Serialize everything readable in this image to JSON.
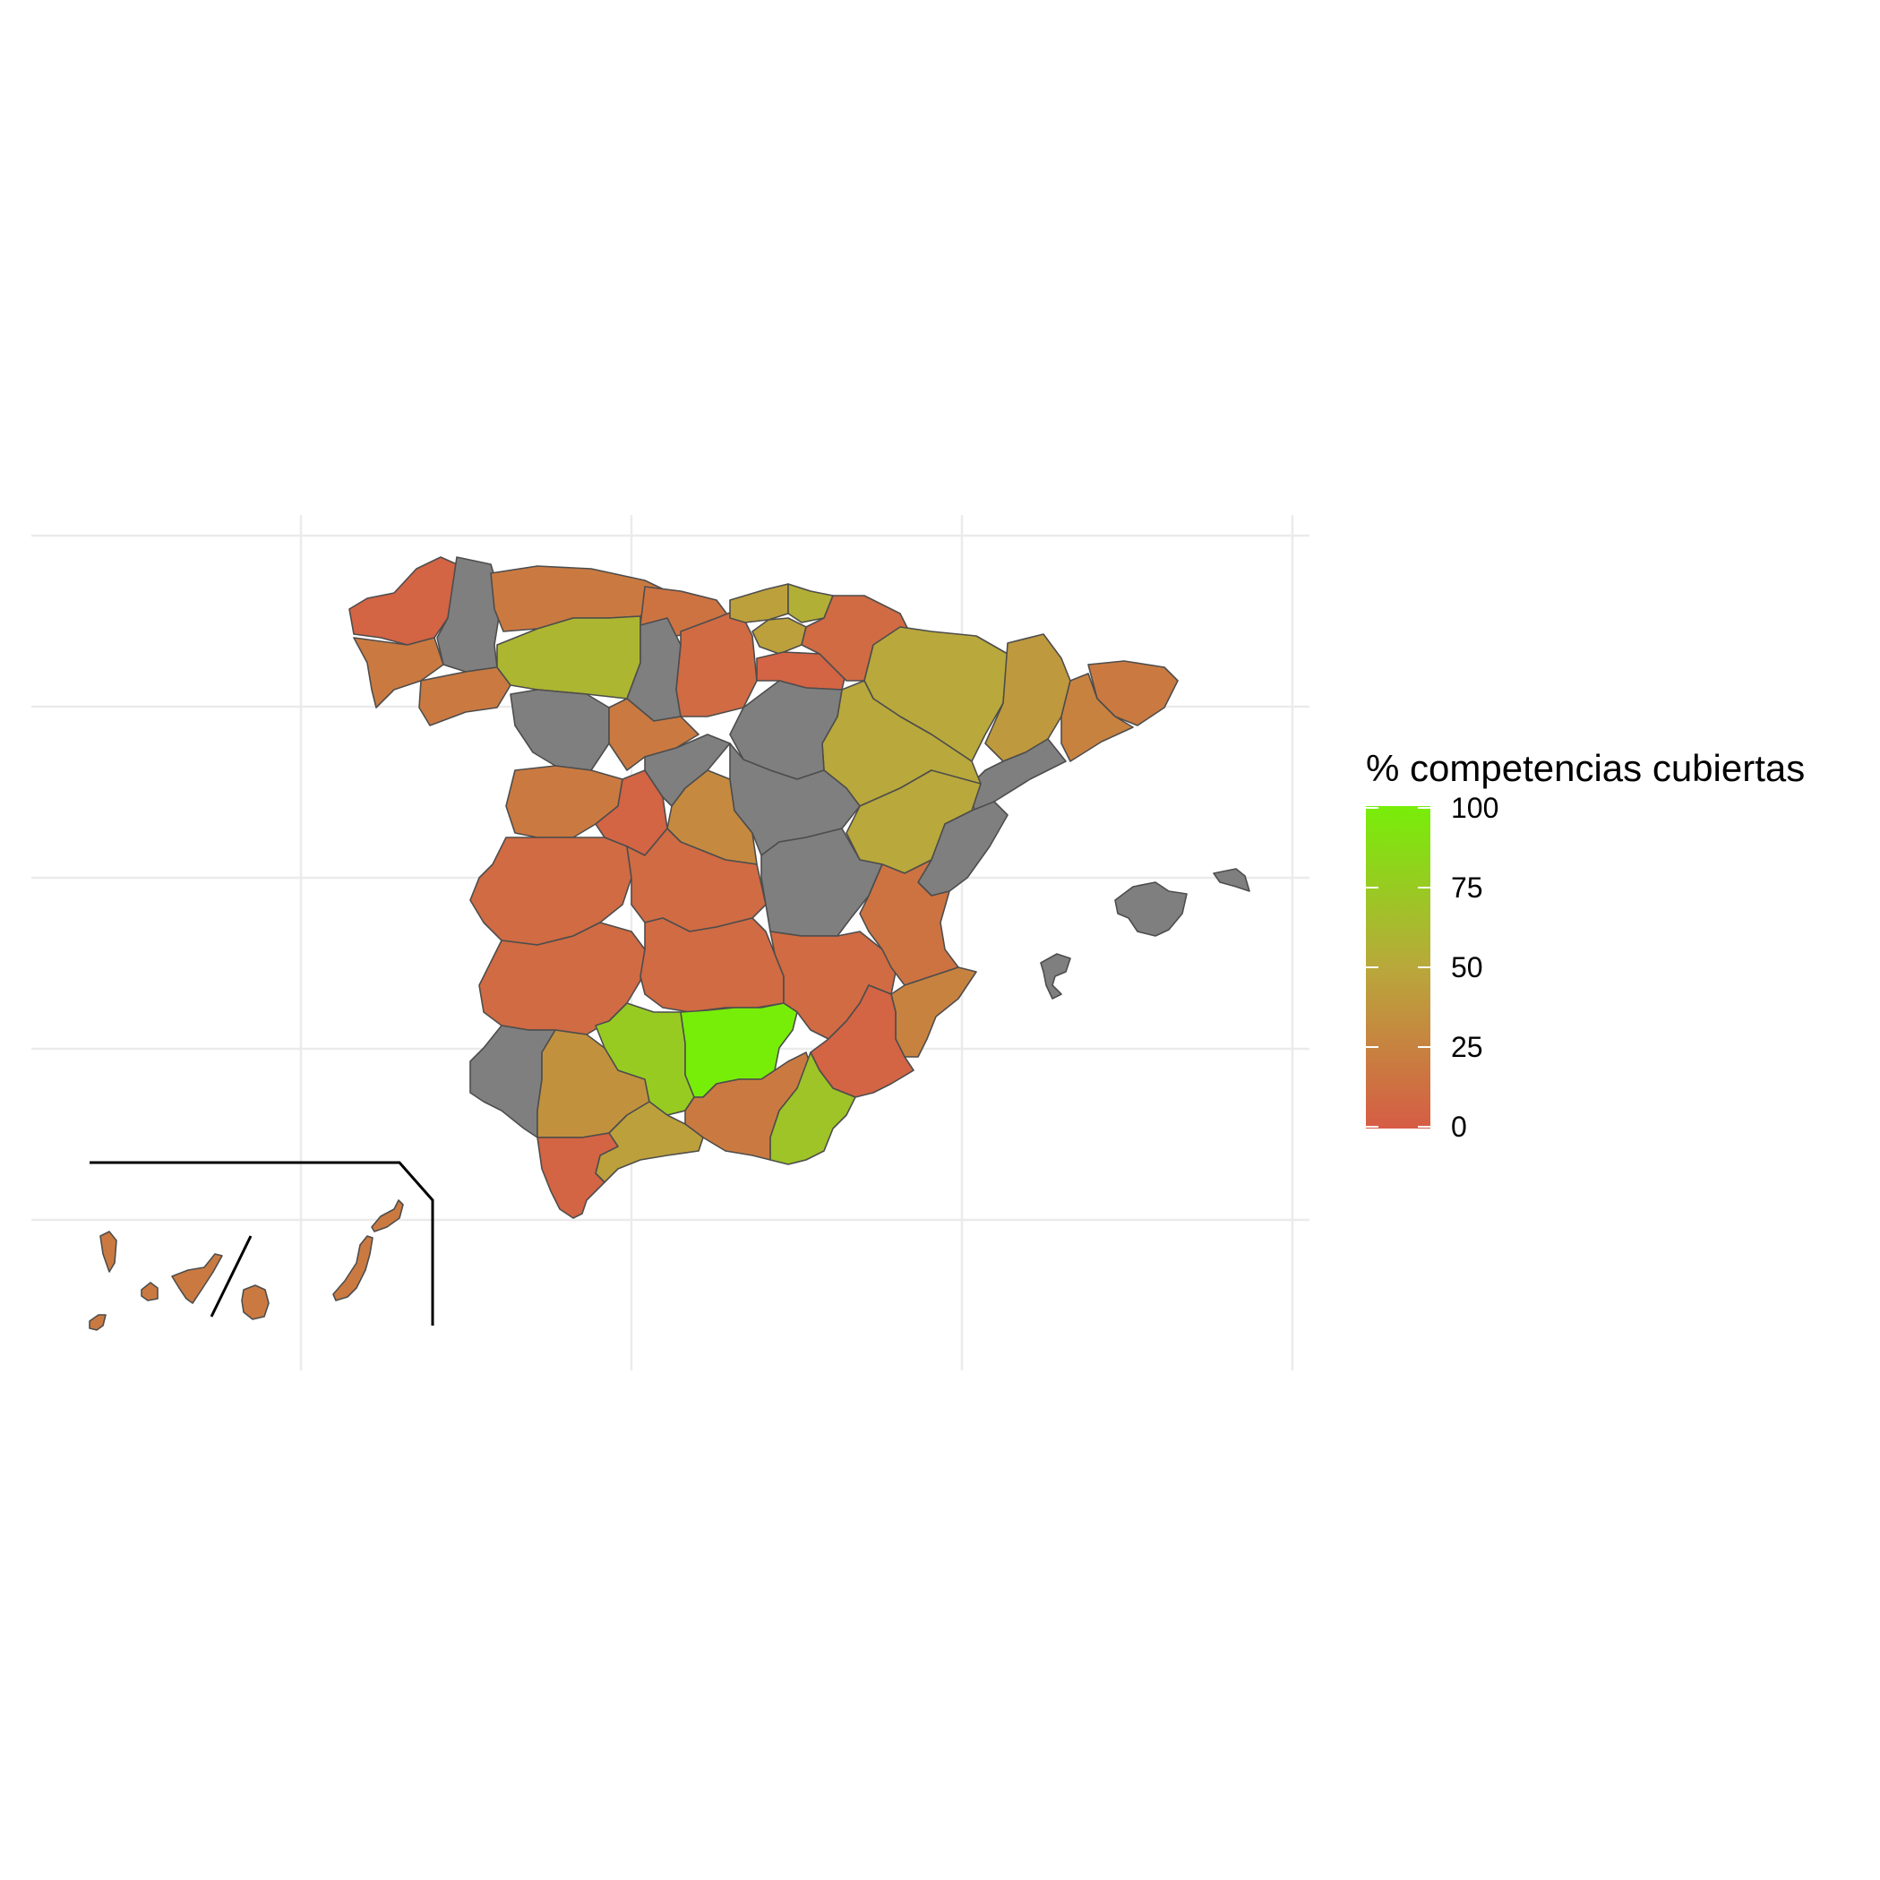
{
  "legend": {
    "title": "% competencias cubiertas",
    "min": 0,
    "max": 100,
    "ticks": [
      "100",
      "75",
      "50",
      "25",
      "0"
    ],
    "colors": {
      "low": "#d65c45",
      "mid": "#b9a83b",
      "high": "#77ee08"
    },
    "na_color": "#7f7f7f"
  },
  "map": {
    "region": "Spain (provinces)",
    "inset": "Canary Islands",
    "provinces": [
      {
        "name": "A Coruña",
        "value": 5
      },
      {
        "name": "Lugo",
        "value": null
      },
      {
        "name": "Pontevedra",
        "value": 20
      },
      {
        "name": "Ourense",
        "value": 20
      },
      {
        "name": "Asturias",
        "value": 20
      },
      {
        "name": "León",
        "value": 60
      },
      {
        "name": "Zamora",
        "value": null
      },
      {
        "name": "Cantabria",
        "value": 15
      },
      {
        "name": "Palencia",
        "value": null
      },
      {
        "name": "Burgos",
        "value": 10
      },
      {
        "name": "Bizkaia",
        "value": 45
      },
      {
        "name": "Gipuzkoa",
        "value": 55
      },
      {
        "name": "Álava",
        "value": 45
      },
      {
        "name": "La Rioja",
        "value": 5
      },
      {
        "name": "Navarra",
        "value": 10
      },
      {
        "name": "Huesca",
        "value": 50
      },
      {
        "name": "Lleida",
        "value": 40
      },
      {
        "name": "Girona",
        "value": 20
      },
      {
        "name": "Barcelona",
        "value": 25
      },
      {
        "name": "Tarragona",
        "value": null
      },
      {
        "name": "Zaragoza",
        "value": 50
      },
      {
        "name": "Teruel",
        "value": 50
      },
      {
        "name": "Castellón",
        "value": null
      },
      {
        "name": "Valladolid",
        "value": 20
      },
      {
        "name": "Soria",
        "value": null
      },
      {
        "name": "Salamanca",
        "value": 20
      },
      {
        "name": "Ávila",
        "value": 5
      },
      {
        "name": "Segovia",
        "value": null
      },
      {
        "name": "Madrid",
        "value": 30
      },
      {
        "name": "Guadalajara",
        "value": null
      },
      {
        "name": "Cuenca",
        "value": null
      },
      {
        "name": "Cáceres",
        "value": 10
      },
      {
        "name": "Toledo",
        "value": 10
      },
      {
        "name": "Badajoz",
        "value": 10
      },
      {
        "name": "Ciudad Real",
        "value": 10
      },
      {
        "name": "Albacete",
        "value": 10
      },
      {
        "name": "Valencia",
        "value": 15
      },
      {
        "name": "Alicante",
        "value": 25
      },
      {
        "name": "Murcia",
        "value": 5
      },
      {
        "name": "Huelva",
        "value": null
      },
      {
        "name": "Sevilla",
        "value": 35
      },
      {
        "name": "Córdoba",
        "value": 75
      },
      {
        "name": "Jaén",
        "value": 100
      },
      {
        "name": "Granada",
        "value": 20
      },
      {
        "name": "Almería",
        "value": 70
      },
      {
        "name": "Málaga",
        "value": 45
      },
      {
        "name": "Cádiz",
        "value": 5
      },
      {
        "name": "Mallorca",
        "value": null
      },
      {
        "name": "Menorca",
        "value": null
      },
      {
        "name": "Ibiza",
        "value": null
      },
      {
        "name": "Las Palmas",
        "value": 20
      },
      {
        "name": "Santa Cruz de Tenerife",
        "value": 20
      }
    ]
  }
}
